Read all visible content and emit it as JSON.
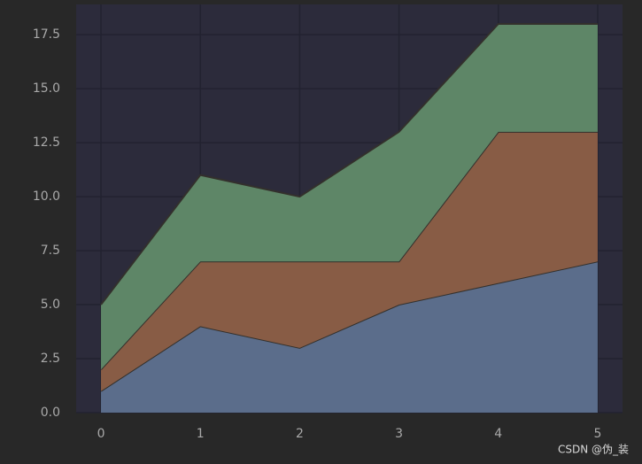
{
  "chart_data": {
    "type": "stackplot",
    "x": [
      0,
      1,
      2,
      3,
      4,
      5
    ],
    "series": [
      {
        "color": "#5b6d8b",
        "values": [
          1,
          4,
          3,
          5,
          6,
          7
        ]
      },
      {
        "color": "#885c45",
        "values": [
          1,
          3,
          4,
          2,
          7,
          6
        ]
      },
      {
        "color": "#5e8667",
        "values": [
          3,
          4,
          3,
          6,
          5,
          5
        ]
      }
    ],
    "xlim": [
      -0.25,
      5.25
    ],
    "ylim": [
      0,
      18.9
    ],
    "xticks": [
      0,
      1,
      2,
      3,
      4,
      5
    ],
    "yticks": [
      {
        "value": 0,
        "label": "0.0"
      },
      {
        "value": 2.5,
        "label": "2.5"
      },
      {
        "value": 5,
        "label": "5.0"
      },
      {
        "value": 7.5,
        "label": "7.5"
      },
      {
        "value": 10,
        "label": "10.0"
      },
      {
        "value": 12.5,
        "label": "12.5"
      },
      {
        "value": 15,
        "label": "15.0"
      },
      {
        "value": 17.5,
        "label": "17.5"
      }
    ],
    "grid": true,
    "watermark": "CSDN @伪_装"
  }
}
